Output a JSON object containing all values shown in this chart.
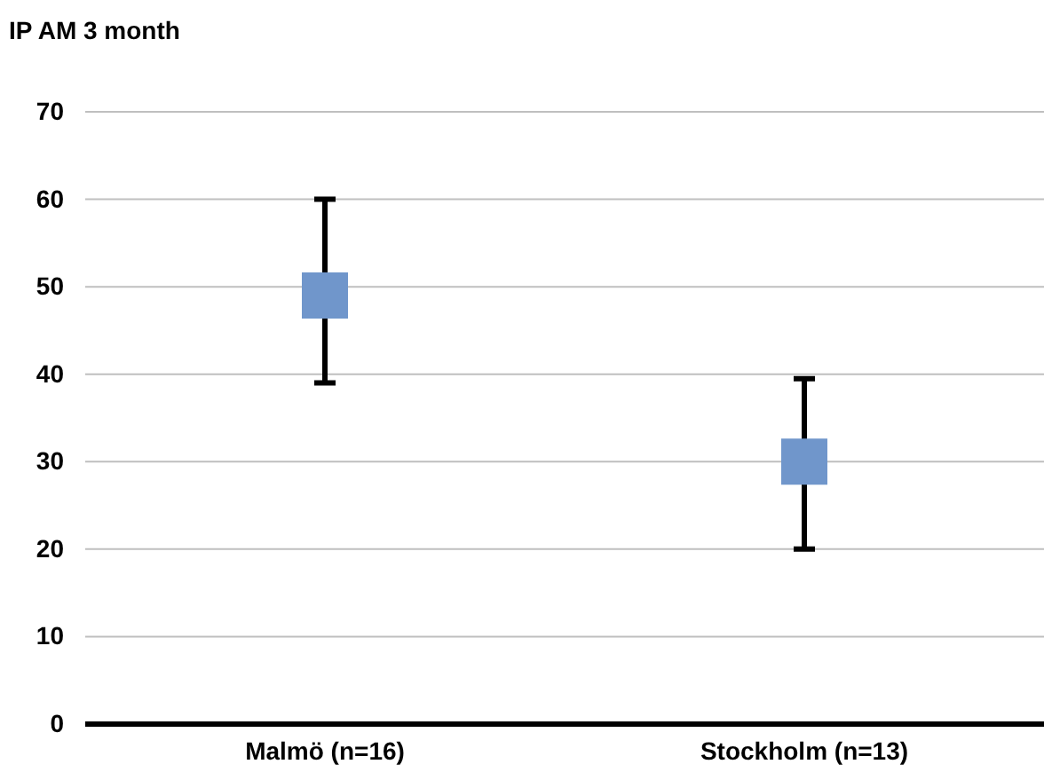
{
  "chart_data": {
    "type": "scatter",
    "ylabel": "IP AM 3 month",
    "categories": [
      "Malmö (n=16)",
      "Stockholm (n=13)"
    ],
    "values": [
      49,
      30
    ],
    "errors": [
      [
        39,
        60
      ],
      [
        20,
        39.5
      ]
    ],
    "color": "#7096cb",
    "marker": "square",
    "ylim": [
      0,
      70
    ],
    "yticks": [
      0,
      10,
      20,
      30,
      40,
      50,
      60,
      70
    ],
    "grid": "y"
  }
}
